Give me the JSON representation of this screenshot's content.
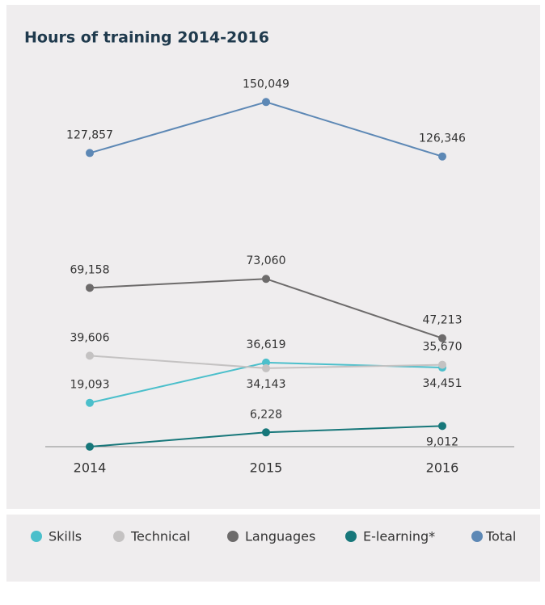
{
  "chart_data": {
    "type": "line",
    "title": "Hours of training 2014-2016",
    "categories": [
      "2014",
      "2015",
      "2016"
    ],
    "ylim": [
      0,
      160000
    ],
    "legend": "bottom",
    "series": [
      {
        "name": "Skills",
        "color": "#4bbfcb",
        "values": [
          19093,
          36619,
          34451
        ],
        "value_labels": [
          "19,093",
          "36,619",
          "34,451"
        ]
      },
      {
        "name": "Technical",
        "color": "#c4c2c2",
        "values": [
          39606,
          34143,
          35670
        ],
        "value_labels": [
          "39,606",
          "34,143",
          "35,670"
        ]
      },
      {
        "name": "Languages",
        "color": "#6d6b6b",
        "values": [
          69158,
          73060,
          47213
        ],
        "value_labels": [
          "69,158",
          "73,060",
          "47,213"
        ]
      },
      {
        "name": "E-learning*",
        "color": "#17777a",
        "values": [
          0,
          6228,
          9012
        ],
        "value_labels": [
          null,
          "6,228",
          "9,012"
        ]
      },
      {
        "name": "Total",
        "color": "#5d88b5",
        "values": [
          127857,
          150049,
          126346
        ],
        "value_labels": [
          "127,857",
          "150,049",
          "126,346"
        ]
      }
    ]
  }
}
